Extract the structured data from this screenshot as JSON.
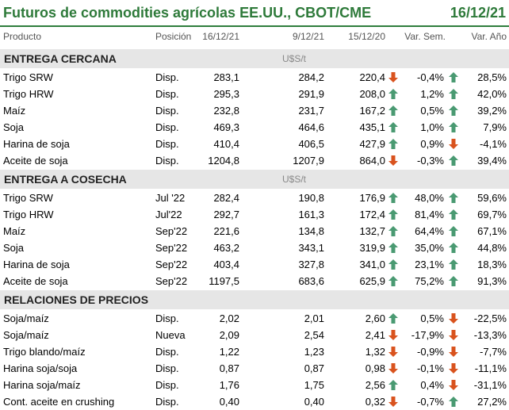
{
  "title": "Futuros de commodities agrícolas EE.UU., CBOT/CME",
  "title_date": "16/12/21",
  "columns": {
    "product": "Producto",
    "position": "Posición",
    "d1": "16/12/21",
    "d2": "9/12/21",
    "d3": "15/12/20",
    "week": "Var. Sem.",
    "year": "Var. Año"
  },
  "colors": {
    "title": "#2e7a3a",
    "up": "#4a9a72",
    "down": "#d9531e",
    "section_bg": "#e6e6e6"
  },
  "sections": [
    {
      "title": "ENTREGA CERCANA",
      "unit": "U$S/t",
      "rows": [
        {
          "name": "Trigo SRW",
          "pos": "Disp.",
          "v1": "283,1",
          "v2": "284,2",
          "v3": "220,4",
          "v3_icon": "arrow-down-icon",
          "ws": "-0,4%",
          "ws_icon": "arrow-up-icon",
          "ya": "28,5%"
        },
        {
          "name": "Trigo HRW",
          "pos": "Disp.",
          "v1": "295,3",
          "v2": "291,9",
          "v3": "208,0",
          "v3_icon": "arrow-up-icon",
          "ws": "1,2%",
          "ws_icon": "arrow-up-icon",
          "ya": "42,0%"
        },
        {
          "name": "Maíz",
          "pos": "Disp.",
          "v1": "232,8",
          "v2": "231,7",
          "v3": "167,2",
          "v3_icon": "arrow-up-icon",
          "ws": "0,5%",
          "ws_icon": "arrow-up-icon",
          "ya": "39,2%"
        },
        {
          "name": "Soja",
          "pos": "Disp.",
          "v1": "469,3",
          "v2": "464,6",
          "v3": "435,1",
          "v3_icon": "arrow-up-icon",
          "ws": "1,0%",
          "ws_icon": "arrow-up-icon",
          "ya": "7,9%"
        },
        {
          "name": "Harina de soja",
          "pos": "Disp.",
          "v1": "410,4",
          "v2": "406,5",
          "v3": "427,9",
          "v3_icon": "arrow-up-icon",
          "ws": "0,9%",
          "ws_icon": "arrow-down-icon",
          "ya": "-4,1%"
        },
        {
          "name": "Aceite de soja",
          "pos": "Disp.",
          "v1": "1204,8",
          "v2": "1207,9",
          "v3": "864,0",
          "v3_icon": "arrow-down-icon",
          "ws": "-0,3%",
          "ws_icon": "arrow-up-icon",
          "ya": "39,4%"
        }
      ]
    },
    {
      "title": "ENTREGA A COSECHA",
      "unit": "U$S/t",
      "rows": [
        {
          "name": "Trigo SRW",
          "pos": "Jul '22",
          "v1": "282,4",
          "v2": "190,8",
          "v3": "176,9",
          "v3_icon": "arrow-up-icon",
          "ws": "48,0%",
          "ws_icon": "arrow-up-icon",
          "ya": "59,6%"
        },
        {
          "name": "Trigo HRW",
          "pos": "Jul'22",
          "v1": "292,7",
          "v2": "161,3",
          "v3": "172,4",
          "v3_icon": "arrow-up-icon",
          "ws": "81,4%",
          "ws_icon": "arrow-up-icon",
          "ya": "69,7%"
        },
        {
          "name": "Maíz",
          "pos": "Sep'22",
          "v1": "221,6",
          "v2": "134,8",
          "v3": "132,7",
          "v3_icon": "arrow-up-icon",
          "ws": "64,4%",
          "ws_icon": "arrow-up-icon",
          "ya": "67,1%"
        },
        {
          "name": "Soja",
          "pos": "Sep'22",
          "v1": "463,2",
          "v2": "343,1",
          "v3": "319,9",
          "v3_icon": "arrow-up-icon",
          "ws": "35,0%",
          "ws_icon": "arrow-up-icon",
          "ya": "44,8%"
        },
        {
          "name": "Harina de soja",
          "pos": "Sep'22",
          "v1": "403,4",
          "v2": "327,8",
          "v3": "341,0",
          "v3_icon": "arrow-up-icon",
          "ws": "23,1%",
          "ws_icon": "arrow-up-icon",
          "ya": "18,3%"
        },
        {
          "name": "Aceite de soja",
          "pos": "Sep'22",
          "v1": "1197,5",
          "v2": "683,6",
          "v3": "625,9",
          "v3_icon": "arrow-up-icon",
          "ws": "75,2%",
          "ws_icon": "arrow-up-icon",
          "ya": "91,3%"
        }
      ]
    },
    {
      "title": "RELACIONES DE PRECIOS",
      "unit": "",
      "rows": [
        {
          "name": "Soja/maíz",
          "pos": "Disp.",
          "v1": "2,02",
          "v2": "2,01",
          "v3": "2,60",
          "v3_icon": "arrow-up-icon",
          "ws": "0,5%",
          "ws_icon": "arrow-down-icon",
          "ya": "-22,5%"
        },
        {
          "name": "Soja/maíz",
          "pos": "Nueva",
          "v1": "2,09",
          "v2": "2,54",
          "v3": "2,41",
          "v3_icon": "arrow-down-icon",
          "ws": "-17,9%",
          "ws_icon": "arrow-down-icon",
          "ya": "-13,3%"
        },
        {
          "name": "Trigo blando/maíz",
          "pos": "Disp.",
          "v1": "1,22",
          "v2": "1,23",
          "v3": "1,32",
          "v3_icon": "arrow-down-icon",
          "ws": "-0,9%",
          "ws_icon": "arrow-down-icon",
          "ya": "-7,7%"
        },
        {
          "name": "Harina soja/soja",
          "pos": "Disp.",
          "v1": "0,87",
          "v2": "0,87",
          "v3": "0,98",
          "v3_icon": "arrow-down-icon",
          "ws": "-0,1%",
          "ws_icon": "arrow-down-icon",
          "ya": "-11,1%"
        },
        {
          "name": "Harina soja/maíz",
          "pos": "Disp.",
          "v1": "1,76",
          "v2": "1,75",
          "v3": "2,56",
          "v3_icon": "arrow-up-icon",
          "ws": "0,4%",
          "ws_icon": "arrow-down-icon",
          "ya": "-31,1%"
        },
        {
          "name": "Cont. aceite en crushing",
          "pos": "Disp.",
          "v1": "0,40",
          "v2": "0,40",
          "v3": "0,32",
          "v3_icon": "arrow-down-icon",
          "ws": "-0,7%",
          "ws_icon": "arrow-up-icon",
          "ya": "27,2%"
        }
      ]
    }
  ]
}
